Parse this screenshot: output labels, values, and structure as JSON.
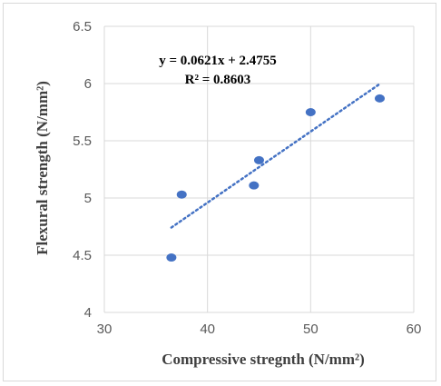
{
  "chart_data": {
    "type": "scatter",
    "xlabel": "Compressive stregnth (N/mm²)",
    "ylabel": "Flexural strength (N/mm²)",
    "xlim": [
      30,
      60
    ],
    "ylim": [
      4,
      6.5
    ],
    "x_ticks": [
      "30",
      "40",
      "50",
      "60"
    ],
    "y_ticks": [
      "4",
      "4.5",
      "5",
      "5.5",
      "6",
      "6.5"
    ],
    "grid": true,
    "legend": "none",
    "series": [
      {
        "points": [
          {
            "x": 36.5,
            "y": 4.48
          },
          {
            "x": 37.5,
            "y": 5.03
          },
          {
            "x": 44.5,
            "y": 5.11
          },
          {
            "x": 45.0,
            "y": 5.33
          },
          {
            "x": 50.0,
            "y": 5.75
          },
          {
            "x": 56.7,
            "y": 5.87
          }
        ]
      }
    ],
    "trendline": {
      "type": "linear",
      "slope": 0.0621,
      "intercept": 2.4755,
      "x_range": [
        36.5,
        56.7
      ],
      "equation": "y = 0.0621x + 2.4755",
      "r_squared": "R² = 0.8603"
    },
    "colors": {
      "marker": "#4472c4",
      "trendline": "#4472c4",
      "grid": "#d9d9d9"
    }
  }
}
